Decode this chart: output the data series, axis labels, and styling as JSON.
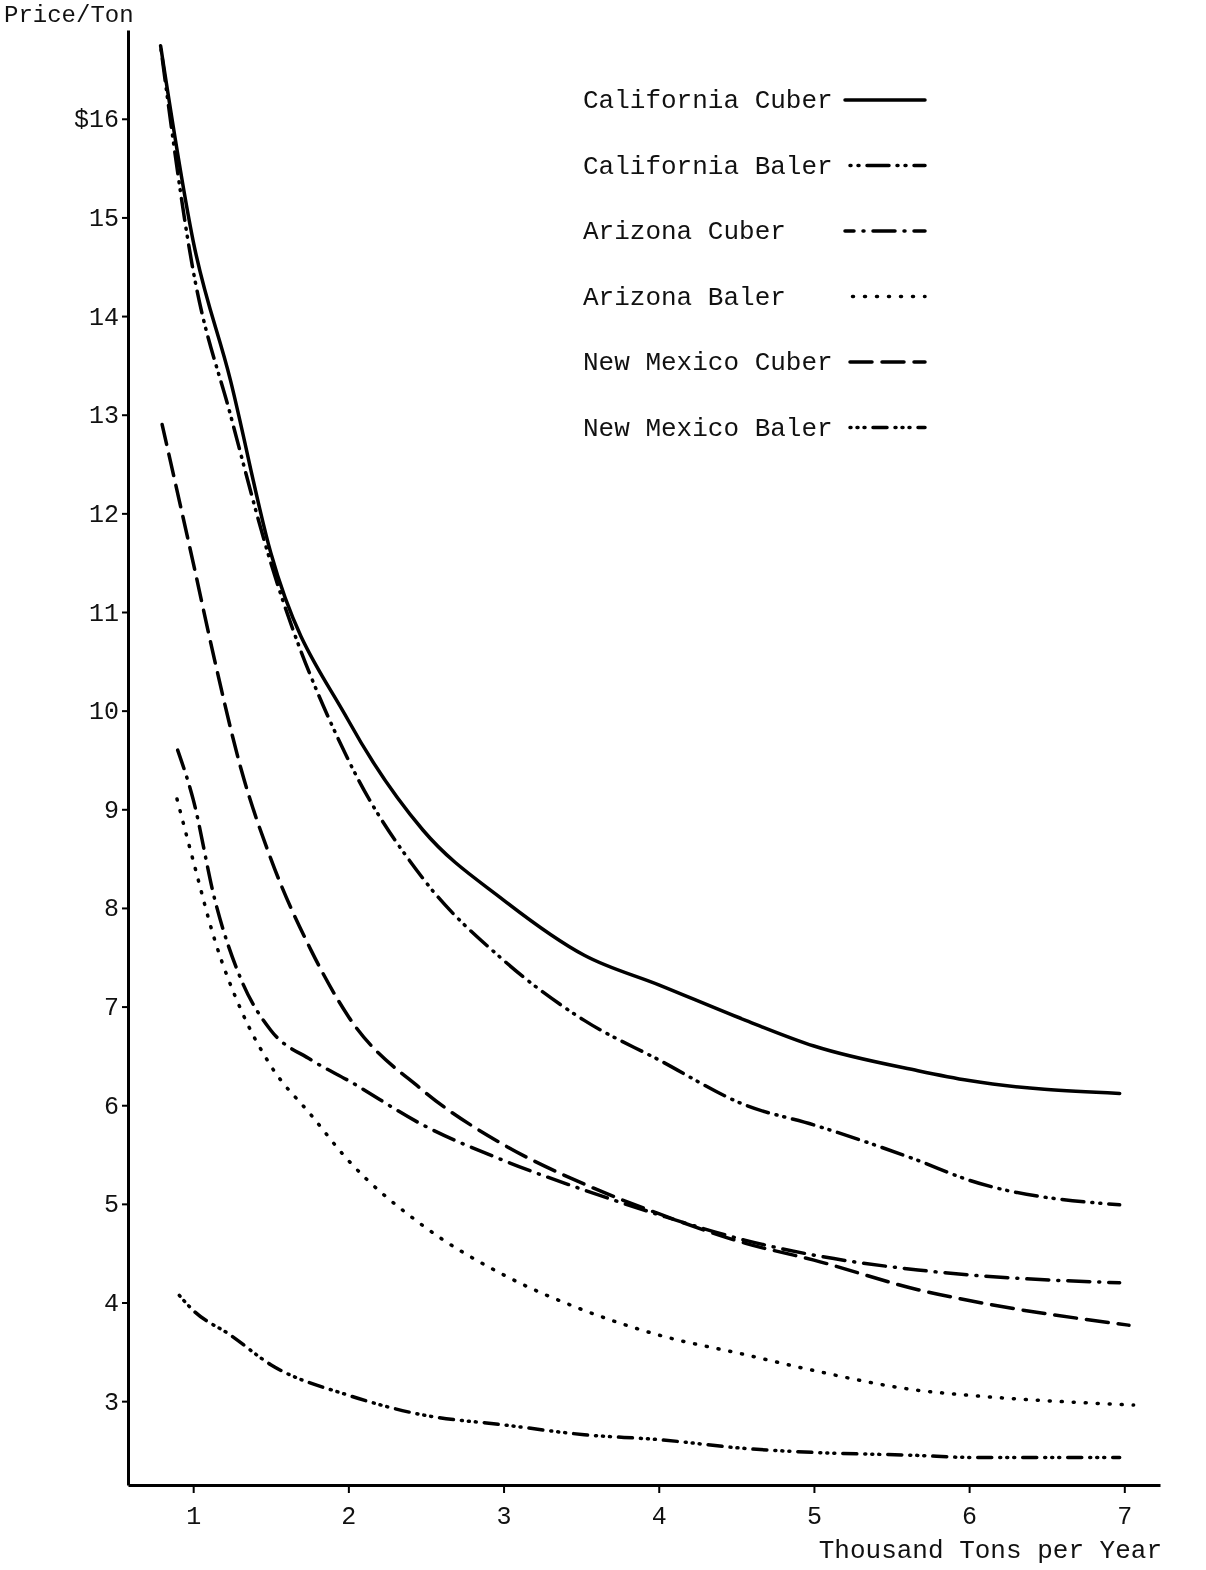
{
  "chart_data": {
    "type": "line",
    "xlabel": "Thousand Tons per Year",
    "ylabel": "Price/Ton",
    "xlim": [
      0.58,
      7.23
    ],
    "ylim": [
      2.15,
      16.9
    ],
    "xticks": [
      1,
      2,
      3,
      4,
      5,
      6,
      7
    ],
    "yticks": [
      3,
      4,
      5,
      6,
      7,
      8,
      9,
      10,
      11,
      12,
      13,
      14,
      15,
      {
        "value": 16,
        "label": "$16"
      }
    ],
    "grid": false,
    "legend": "top right",
    "series": [
      {
        "name": "California Cuber",
        "color": "#000000",
        "line_style": "solid",
        "x": [
          0.79,
          1,
          1.24,
          1.5,
          2,
          2.48,
          3,
          3.52,
          4,
          4.56,
          5,
          5.67,
          6,
          6.97
        ],
        "values": [
          16.74,
          14.76,
          13.35,
          11.6,
          9.9,
          8.79,
          8.08,
          7.52,
          7.22,
          6.86,
          6.6,
          6.35,
          6.25,
          6.12
        ]
      },
      {
        "name": "California Baler",
        "color": "#000000",
        "line_style": "dashdotdot",
        "x": [
          0.79,
          1,
          1.24,
          1.5,
          2,
          2.48,
          3,
          3.52,
          4,
          4.56,
          5,
          5.67,
          6,
          6.97
        ],
        "values": [
          16.74,
          14.46,
          13.0,
          11.5,
          9.5,
          8.3,
          7.47,
          6.86,
          6.46,
          6.0,
          5.8,
          5.44,
          5.24,
          4.99
        ]
      },
      {
        "name": "Arizona Cuber",
        "color": "#000000",
        "line_style": "dashdot",
        "x": [
          0.9,
          1,
          1.14,
          1.31,
          1.5,
          1.76,
          2,
          2.48,
          3,
          3.52,
          4,
          4.56,
          5,
          5.67,
          6,
          6.97
        ],
        "values": [
          9.6,
          9.1,
          8.08,
          7.27,
          6.76,
          6.46,
          6.25,
          5.8,
          5.44,
          5.14,
          4.89,
          4.63,
          4.48,
          4.33,
          4.28,
          4.2
        ]
      },
      {
        "name": "Arizona Baler",
        "color": "#000000",
        "line_style": "dotted",
        "x": [
          0.88,
          1,
          1.14,
          1.31,
          1.5,
          1.76,
          2,
          2.48,
          3,
          3.52,
          4,
          4.56,
          5,
          5.67,
          6,
          7.06
        ],
        "values": [
          9.2,
          8.48,
          7.67,
          6.96,
          6.4,
          5.9,
          5.44,
          4.78,
          4.28,
          3.92,
          3.67,
          3.47,
          3.31,
          3.11,
          3.06,
          2.96
        ]
      },
      {
        "name": "New Mexico Cuber",
        "color": "#000000",
        "line_style": "dashed",
        "x": [
          0.8,
          1,
          1.14,
          1.31,
          1.5,
          1.76,
          2,
          2.48,
          3,
          3.52,
          4,
          4.56,
          5,
          5.67,
          6,
          7.03
        ],
        "values": [
          12.9,
          11.5,
          10.5,
          9.4,
          8.5,
          7.57,
          6.9,
          6.15,
          5.6,
          5.2,
          4.9,
          4.6,
          4.43,
          4.13,
          4.02,
          3.77
        ]
      },
      {
        "name": "New Mexico Baler",
        "color": "#000000",
        "line_style": "dashdotdotdot",
        "x": [
          0.88,
          1,
          1.24,
          1.5,
          2,
          2.48,
          3,
          3.52,
          4,
          4.56,
          5,
          5.67,
          6,
          6.97
        ],
        "values": [
          4.13,
          3.92,
          3.67,
          3.37,
          3.06,
          2.86,
          2.76,
          2.66,
          2.61,
          2.52,
          2.48,
          2.45,
          2.43,
          2.43
        ]
      }
    ]
  }
}
